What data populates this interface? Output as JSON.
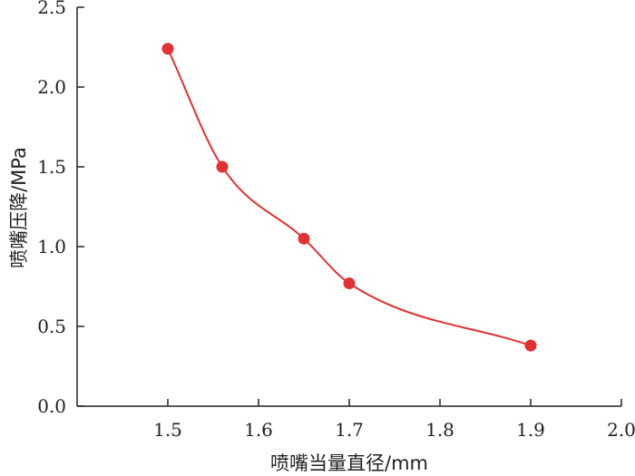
{
  "chart_data": {
    "type": "line",
    "xlabel": "喷嘴当量直径/mm",
    "ylabel": "喷嘴压降/MPa",
    "xlim": [
      1.4,
      2.0
    ],
    "ylim": [
      0.0,
      2.5
    ],
    "x_ticks": [
      "1.5",
      "1.6",
      "1.7",
      "1.8",
      "1.9",
      "2.0"
    ],
    "y_ticks": [
      "0.0",
      "0.5",
      "1.0",
      "1.5",
      "2.0",
      "2.5"
    ],
    "smooth": true,
    "grid": false,
    "series": [
      {
        "color": "#e03232",
        "x": [
          1.5,
          1.56,
          1.65,
          1.7,
          1.9
        ],
        "y": [
          2.24,
          1.5,
          1.05,
          0.77,
          0.38
        ]
      }
    ]
  }
}
